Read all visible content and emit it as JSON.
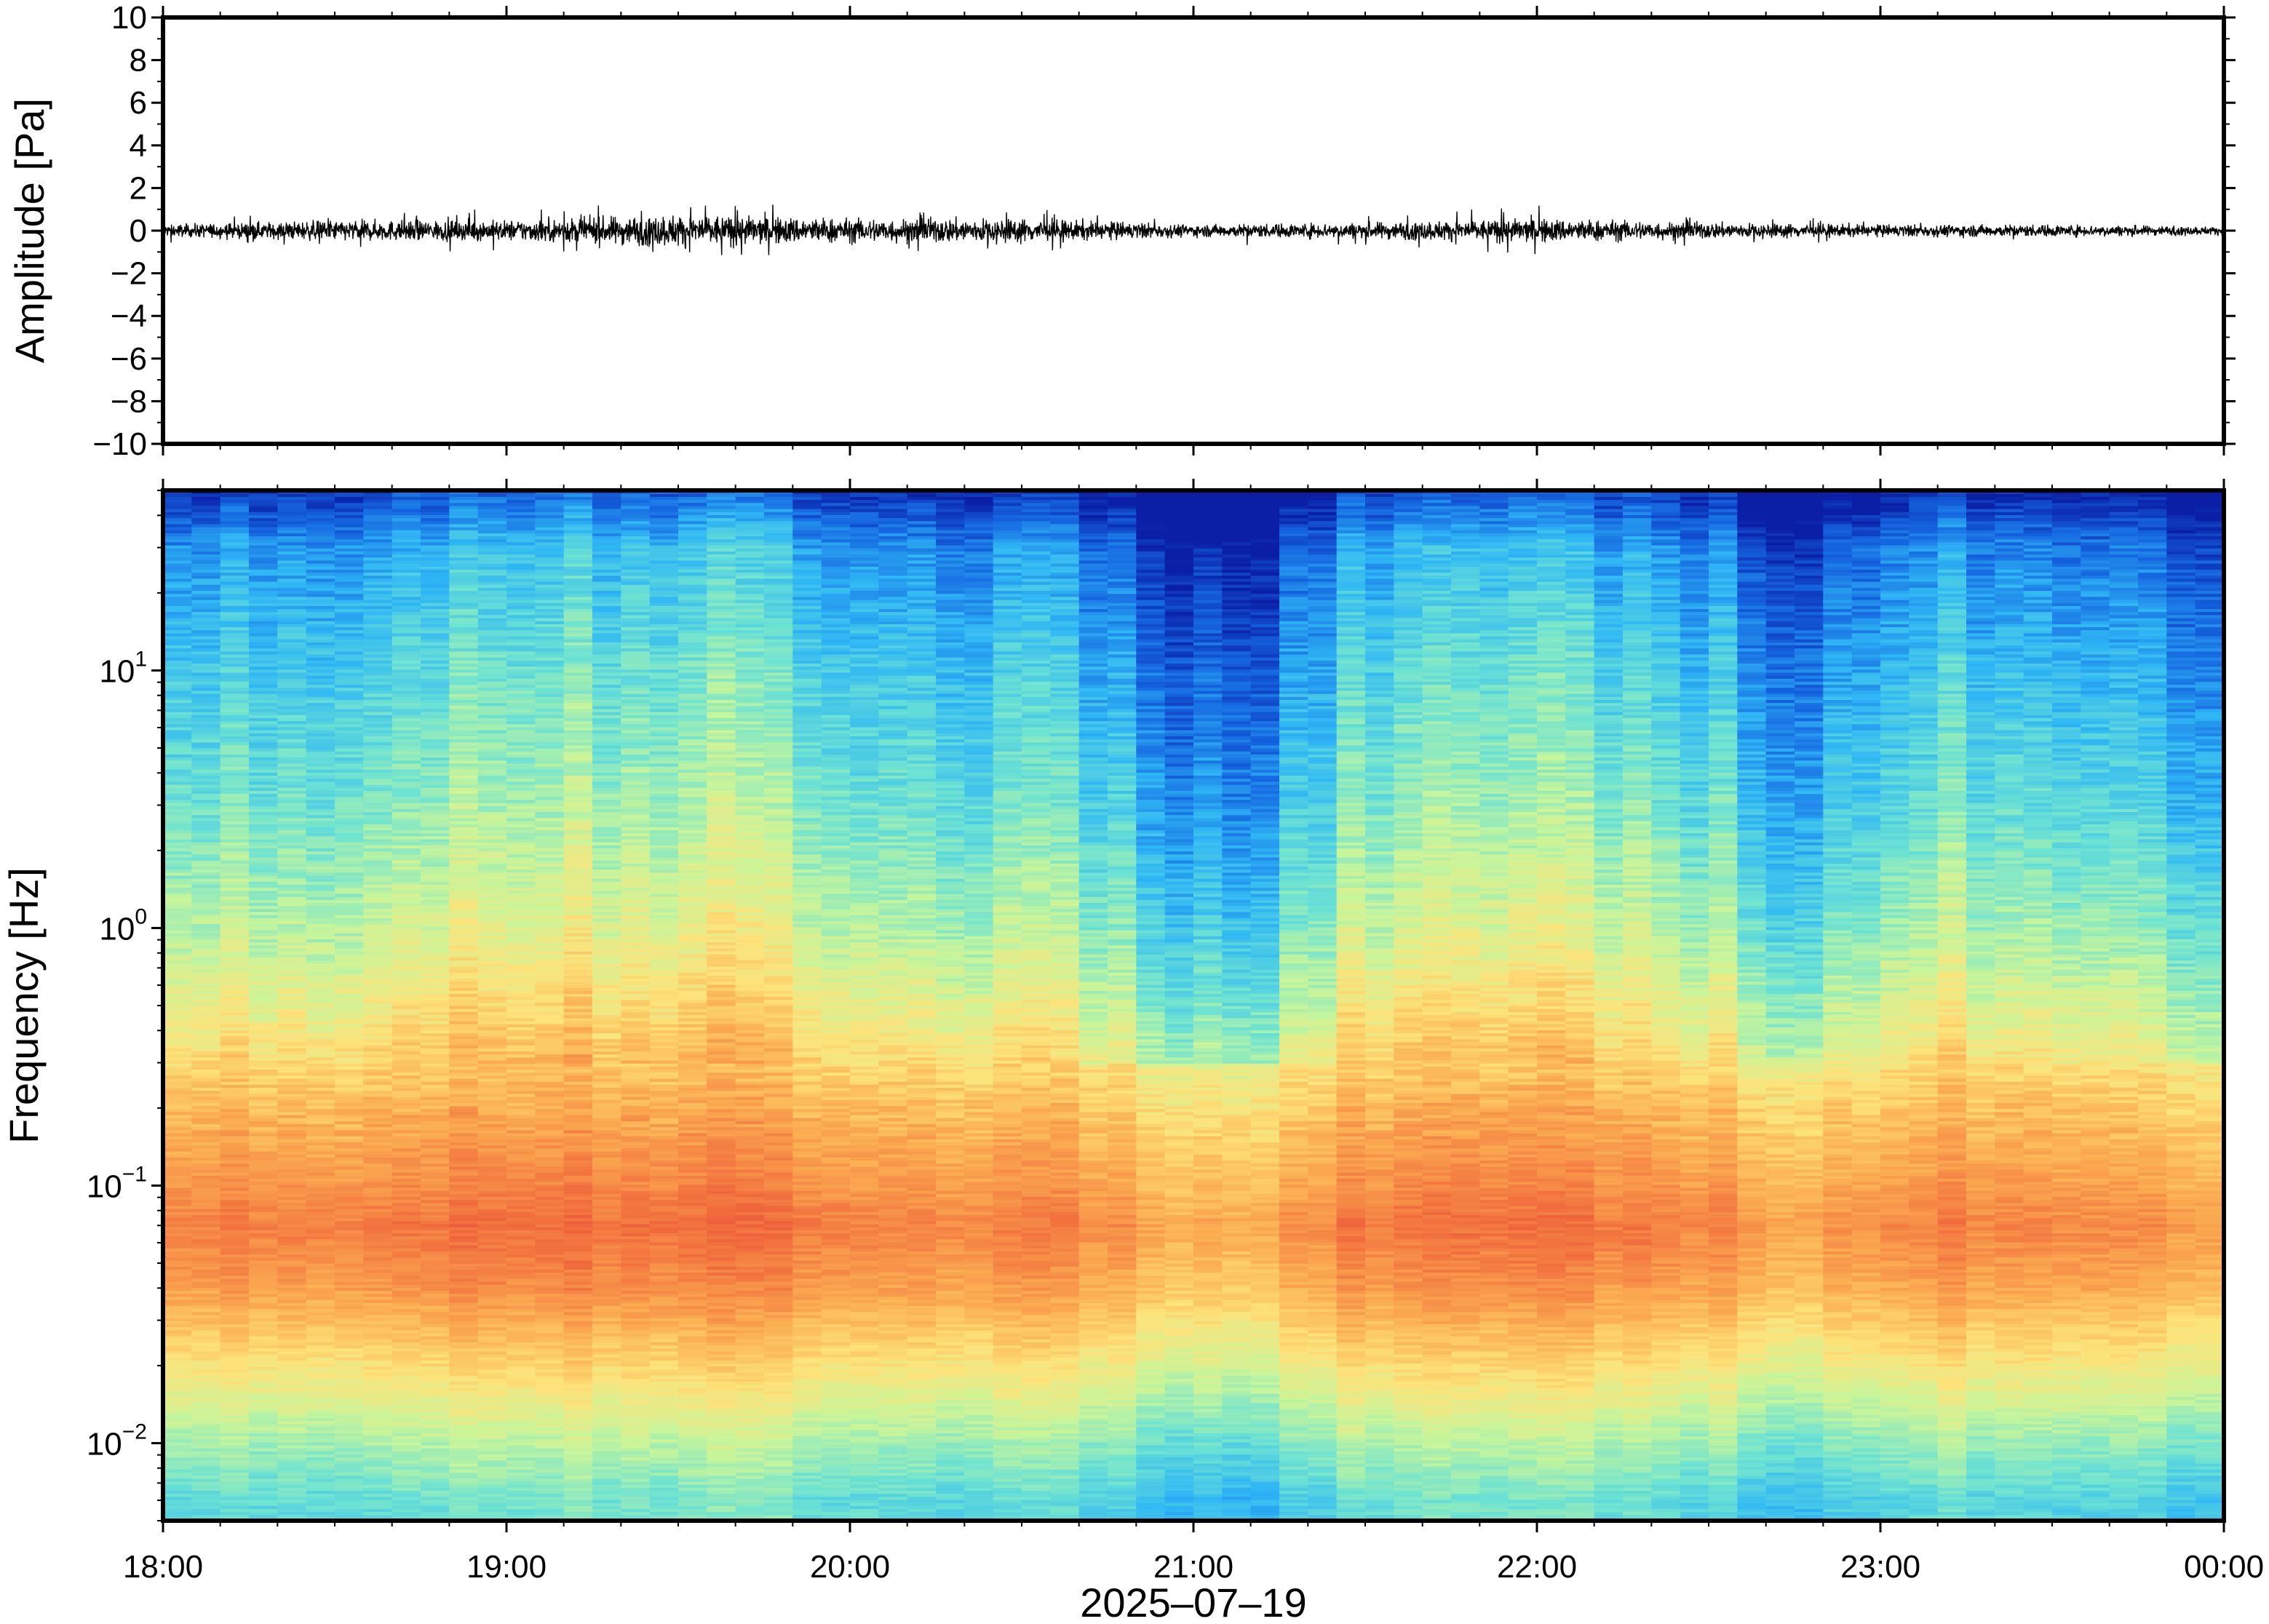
{
  "chart_data": [
    {
      "type": "line",
      "panel": "waveform",
      "ylabel": "Amplitude [Pa]",
      "ylim": [
        -10,
        10
      ],
      "yticks": [
        10,
        8,
        6,
        4,
        2,
        0,
        -2,
        -4,
        -6,
        -8,
        -10
      ],
      "ytick_labels": [
        "10",
        "8",
        "6",
        "4",
        "2",
        "0",
        "−2",
        "−4",
        "−6",
        "−8",
        "−10"
      ],
      "xlim": [
        "18:00",
        "00:00"
      ],
      "series": [
        {
          "color": "#000000",
          "x_hours": [
            18.0,
            18.5,
            19.0,
            19.5,
            20.0,
            20.5,
            21.0,
            21.5,
            22.0,
            22.5,
            23.0,
            23.5,
            24.0
          ],
          "envelope_pa": [
            0.3,
            0.5,
            0.5,
            0.8,
            0.6,
            0.6,
            0.3,
            0.4,
            0.6,
            0.4,
            0.3,
            0.3,
            0.2
          ],
          "peak_pa": [
            0.6,
            0.8,
            1.1,
            1.3,
            1.2,
            1.1,
            0.6,
            0.9,
            1.2,
            0.8,
            0.5,
            0.4,
            0.3
          ]
        }
      ]
    },
    {
      "type": "heatmap",
      "panel": "spectrogram",
      "ylabel": "Frequency [Hz]",
      "xlabel": "2025–07–19",
      "yscale": "log",
      "ylim": [
        0.005,
        50
      ],
      "yticks": [
        {
          "value": 0.01,
          "base": "10",
          "exp": "−2"
        },
        {
          "value": 0.1,
          "base": "10",
          "exp": "−1"
        },
        {
          "value": 1,
          "base": "10",
          "exp": "0"
        },
        {
          "value": 10,
          "base": "10",
          "exp": "1"
        }
      ],
      "xticks": [
        "18:00",
        "19:00",
        "20:00",
        "21:00",
        "22:00",
        "23:00",
        "00:00"
      ],
      "colormap": [
        "#0a1fa6",
        "#1565e0",
        "#2fb7f5",
        "#6ee3d2",
        "#c8f59a",
        "#fde37a",
        "#fbae52",
        "#f2743f",
        "#e64436"
      ],
      "time_columns": 72,
      "power_profile_by_frequency": {
        "frequency_hz": [
          0.006,
          0.01,
          0.02,
          0.04,
          0.07,
          0.1,
          0.2,
          0.4,
          1,
          3,
          10,
          30,
          48
        ],
        "relative_level": [
          0.35,
          0.45,
          0.62,
          0.78,
          0.85,
          0.8,
          0.72,
          0.6,
          0.48,
          0.38,
          0.3,
          0.2,
          0.05
        ]
      },
      "quiet_times": [
        "20:55",
        "21:10",
        "22:45",
        "23:55"
      ],
      "loud_times": [
        "19:00",
        "19:35",
        "21:50"
      ]
    }
  ]
}
